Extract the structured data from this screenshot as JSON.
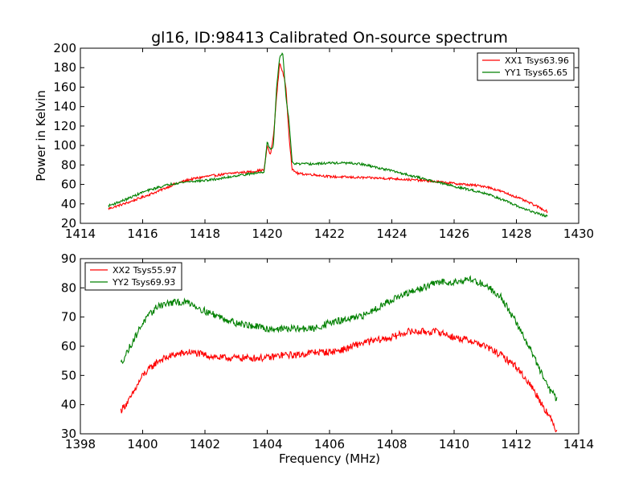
{
  "chart_data": [
    {
      "type": "line",
      "title": "gl16, ID:98413 Calibrated On-source spectrum",
      "xlabel": "",
      "ylabel": "Power in Kelvin",
      "xlim": [
        1414,
        1430
      ],
      "ylim": [
        20,
        200
      ],
      "xticks": [
        1414,
        1416,
        1418,
        1420,
        1422,
        1424,
        1426,
        1428,
        1430
      ],
      "yticks": [
        20,
        40,
        60,
        80,
        100,
        120,
        140,
        160,
        180,
        200
      ],
      "grid": false,
      "legend": "top-right",
      "series": [
        {
          "name": "XX1 Tsys63.96",
          "color": "#ff0000",
          "points": [
            [
              1414.9,
              35
            ],
            [
              1415.5,
              41
            ],
            [
              1416,
              47
            ],
            [
              1416.5,
              53
            ],
            [
              1417,
              60
            ],
            [
              1417.5,
              65
            ],
            [
              1418,
              68
            ],
            [
              1418.5,
              70
            ],
            [
              1419,
              72
            ],
            [
              1419.5,
              73
            ],
            [
              1419.9,
              75
            ],
            [
              1420,
              100
            ],
            [
              1420.1,
              90
            ],
            [
              1420.2,
              110
            ],
            [
              1420.3,
              150
            ],
            [
              1420.4,
              185
            ],
            [
              1420.5,
              175
            ],
            [
              1420.6,
              160
            ],
            [
              1420.7,
              110
            ],
            [
              1420.8,
              75
            ],
            [
              1421,
              71
            ],
            [
              1421.5,
              70
            ],
            [
              1422,
              68
            ],
            [
              1423,
              67
            ],
            [
              1424,
              66
            ],
            [
              1425,
              64
            ],
            [
              1426,
              61
            ],
            [
              1427,
              58
            ],
            [
              1427.5,
              53
            ],
            [
              1428,
              47
            ],
            [
              1428.5,
              40
            ],
            [
              1429,
              32
            ]
          ]
        },
        {
          "name": "YY1 Tsys65.65",
          "color": "#008000",
          "points": [
            [
              1414.9,
              38
            ],
            [
              1415.5,
              45
            ],
            [
              1416,
              52
            ],
            [
              1416.5,
              57
            ],
            [
              1417,
              61
            ],
            [
              1417.5,
              63
            ],
            [
              1418,
              64
            ],
            [
              1418.5,
              66
            ],
            [
              1419,
              69
            ],
            [
              1419.5,
              71
            ],
            [
              1419.9,
              73
            ],
            [
              1420,
              105
            ],
            [
              1420.1,
              95
            ],
            [
              1420.2,
              100
            ],
            [
              1420.3,
              160
            ],
            [
              1420.4,
              190
            ],
            [
              1420.5,
              195
            ],
            [
              1420.6,
              150
            ],
            [
              1420.7,
              125
            ],
            [
              1420.8,
              82
            ],
            [
              1421,
              81
            ],
            [
              1421.5,
              81
            ],
            [
              1422,
              82
            ],
            [
              1422.5,
              82
            ],
            [
              1423,
              81
            ],
            [
              1424,
              74
            ],
            [
              1425,
              66
            ],
            [
              1426,
              58
            ],
            [
              1427,
              51
            ],
            [
              1427.5,
              45
            ],
            [
              1428,
              38
            ],
            [
              1428.5,
              32
            ],
            [
              1429,
              27
            ]
          ]
        }
      ]
    },
    {
      "type": "line",
      "title": "",
      "xlabel": "Frequency (MHz)",
      "ylabel": "",
      "xlim": [
        1398,
        1414
      ],
      "ylim": [
        30,
        90
      ],
      "xticks": [
        1398,
        1400,
        1402,
        1404,
        1406,
        1408,
        1410,
        1412,
        1414
      ],
      "yticks": [
        30,
        40,
        50,
        60,
        70,
        80,
        90
      ],
      "grid": false,
      "legend": "top-left",
      "series": [
        {
          "name": "XX2 Tsys55.97",
          "color": "#ff0000",
          "points": [
            [
              1399.3,
              38
            ],
            [
              1399.6,
              42
            ],
            [
              1400,
              50
            ],
            [
              1400.5,
              55
            ],
            [
              1401,
              57
            ],
            [
              1401.5,
              58
            ],
            [
              1402,
              57
            ],
            [
              1402.5,
              56
            ],
            [
              1403,
              56
            ],
            [
              1403.5,
              56
            ],
            [
              1404,
              56
            ],
            [
              1404.5,
              57
            ],
            [
              1405,
              57
            ],
            [
              1405.5,
              58
            ],
            [
              1406,
              58
            ],
            [
              1406.5,
              59
            ],
            [
              1407,
              61
            ],
            [
              1407.5,
              62
            ],
            [
              1408,
              63
            ],
            [
              1408.5,
              65
            ],
            [
              1409,
              65
            ],
            [
              1409.5,
              65
            ],
            [
              1410,
              63
            ],
            [
              1410.5,
              62
            ],
            [
              1411,
              60
            ],
            [
              1411.5,
              57
            ],
            [
              1412,
              53
            ],
            [
              1412.5,
              46
            ],
            [
              1413,
              37
            ],
            [
              1413.3,
              31
            ]
          ]
        },
        {
          "name": "YY2 Tsys69.93",
          "color": "#008000",
          "points": [
            [
              1399.3,
              54
            ],
            [
              1399.6,
              60
            ],
            [
              1400,
              68
            ],
            [
              1400.5,
              74
            ],
            [
              1401,
              75
            ],
            [
              1401.5,
              75
            ],
            [
              1402,
              72
            ],
            [
              1402.5,
              70
            ],
            [
              1403,
              68
            ],
            [
              1403.5,
              67
            ],
            [
              1404,
              66
            ],
            [
              1404.5,
              66
            ],
            [
              1405,
              66
            ],
            [
              1405.5,
              66
            ],
            [
              1406,
              68
            ],
            [
              1406.5,
              69
            ],
            [
              1407,
              70
            ],
            [
              1407.5,
              73
            ],
            [
              1408,
              76
            ],
            [
              1408.5,
              78
            ],
            [
              1409,
              80
            ],
            [
              1409.5,
              82
            ],
            [
              1410,
              82
            ],
            [
              1410.5,
              83
            ],
            [
              1411,
              81
            ],
            [
              1411.5,
              77
            ],
            [
              1412,
              68
            ],
            [
              1412.5,
              58
            ],
            [
              1413,
              46
            ],
            [
              1413.3,
              42
            ]
          ]
        }
      ]
    }
  ]
}
